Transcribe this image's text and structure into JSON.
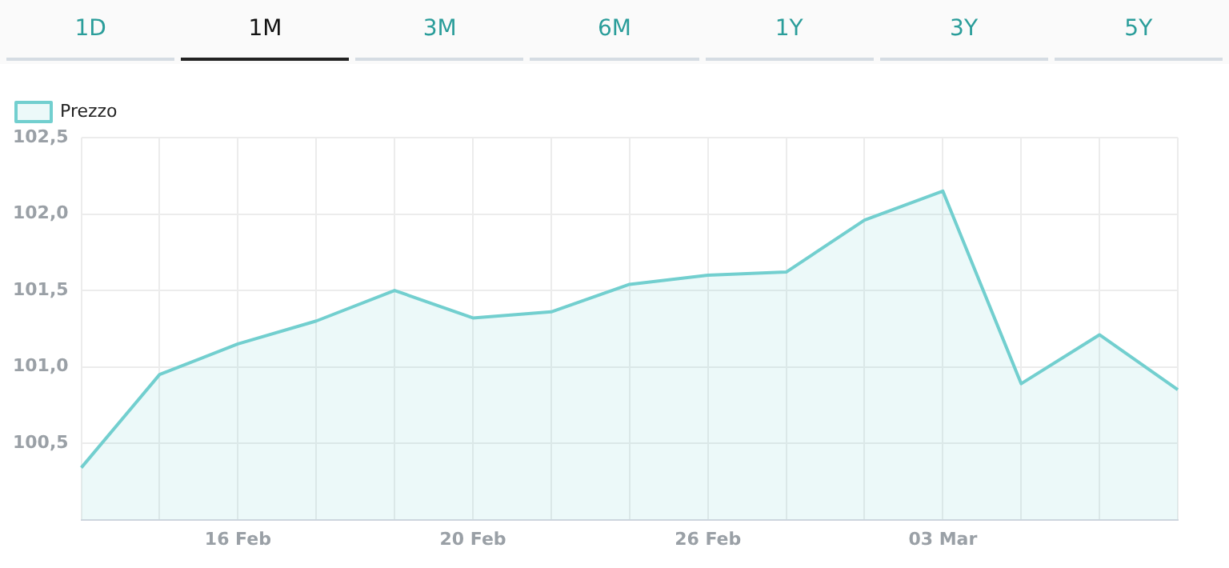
{
  "chart_data": {
    "type": "area",
    "annotations": [
      "1D",
      "1M",
      "3M",
      "6M",
      "1Y",
      "3Y",
      "5Y"
    ],
    "categories": [
      null,
      null,
      "16 Feb",
      null,
      null,
      "20 Feb",
      null,
      null,
      "26 Feb",
      null,
      null,
      "03 Mar",
      null,
      null,
      null
    ],
    "series": [
      {
        "name": "Prezzo",
        "color": "#72cfcf",
        "values": [
          100.34,
          100.95,
          101.15,
          101.3,
          101.5,
          101.32,
          101.36,
          101.54,
          101.6,
          101.62,
          101.96,
          102.15,
          100.89,
          101.21,
          100.85
        ]
      }
    ],
    "ylim": [
      100,
      102.5
    ],
    "yticks": [
      {
        "value": 100.5,
        "label": "100,5"
      },
      {
        "value": 101,
        "label": "101,0"
      },
      {
        "value": 101.5,
        "label": "101,5"
      },
      {
        "value": 102,
        "label": "102,0"
      },
      {
        "value": 102.5,
        "label": "102,5"
      }
    ],
    "grid": true,
    "legend": "top left"
  }
}
